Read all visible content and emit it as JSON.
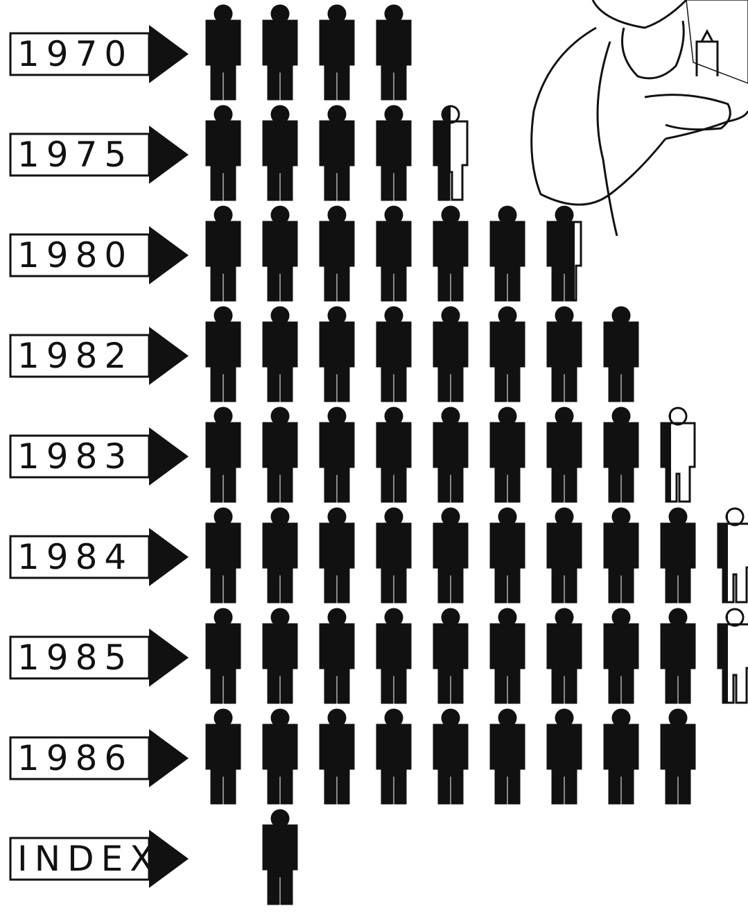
{
  "chart_data": {
    "type": "pictograph",
    "categories": [
      "1970",
      "1975",
      "1980",
      "1982",
      "1983",
      "1984",
      "1985",
      "1986"
    ],
    "values": [
      4,
      4.5,
      6.8,
      8,
      8.3,
      9.3,
      9.3,
      9
    ],
    "index_label": "INDEX",
    "index_value": 1,
    "color": "#111111"
  }
}
